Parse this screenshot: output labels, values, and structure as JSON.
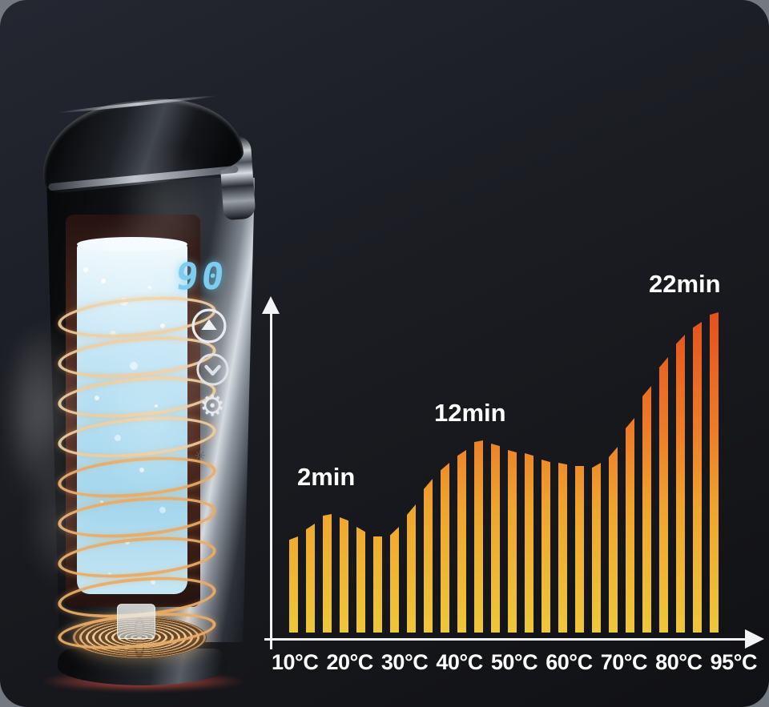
{
  "device": {
    "display_temperature": "90",
    "display_color": "#7ecdee",
    "icons": {
      "temp_up": "chevron-up-in-circle",
      "temp_down": "chevron-down-in-circle",
      "settings": "gear",
      "heat_indicator": "sun"
    },
    "colors": {
      "heat_glow": "#d9534a",
      "coil": "#eecd9e",
      "water": "#b4dff2"
    }
  },
  "chart_data": {
    "type": "bar",
    "title": "",
    "xlabel": "",
    "ylabel": "",
    "categories": [
      "10°C",
      "20°C",
      "30°C",
      "40°C",
      "50°C",
      "60°C",
      "70°C",
      "80°C",
      "95°C"
    ],
    "annotations": [
      {
        "label": "2min",
        "near_category": "20°C",
        "value_min": 2
      },
      {
        "label": "12min",
        "near_category": "40°C",
        "value_min": 12
      },
      {
        "label": "22min",
        "near_category": "95°C",
        "value_min": 22
      }
    ],
    "implied_values_min": {
      "20°C": 2,
      "40°C": 12,
      "95°C": 22
    },
    "ylim_min": [
      0,
      22
    ],
    "bar_relative_heights": [
      0.3,
      0.34,
      0.37,
      0.36,
      0.33,
      0.3,
      0.33,
      0.4,
      0.48,
      0.53,
      0.57,
      0.6,
      0.59,
      0.57,
      0.56,
      0.54,
      0.53,
      0.52,
      0.53,
      0.58,
      0.67,
      0.77,
      0.86,
      0.93,
      0.97,
      1.0
    ],
    "legend": "none",
    "grid": "off",
    "colors": {
      "bar_gradient_bottom": "#eec73a",
      "bar_gradient_mid": "#ee7e27",
      "bar_gradient_top": "#e4511d",
      "axis": "#f2f3f5",
      "labels": "#ffffff",
      "background": "#1b1d23"
    }
  }
}
